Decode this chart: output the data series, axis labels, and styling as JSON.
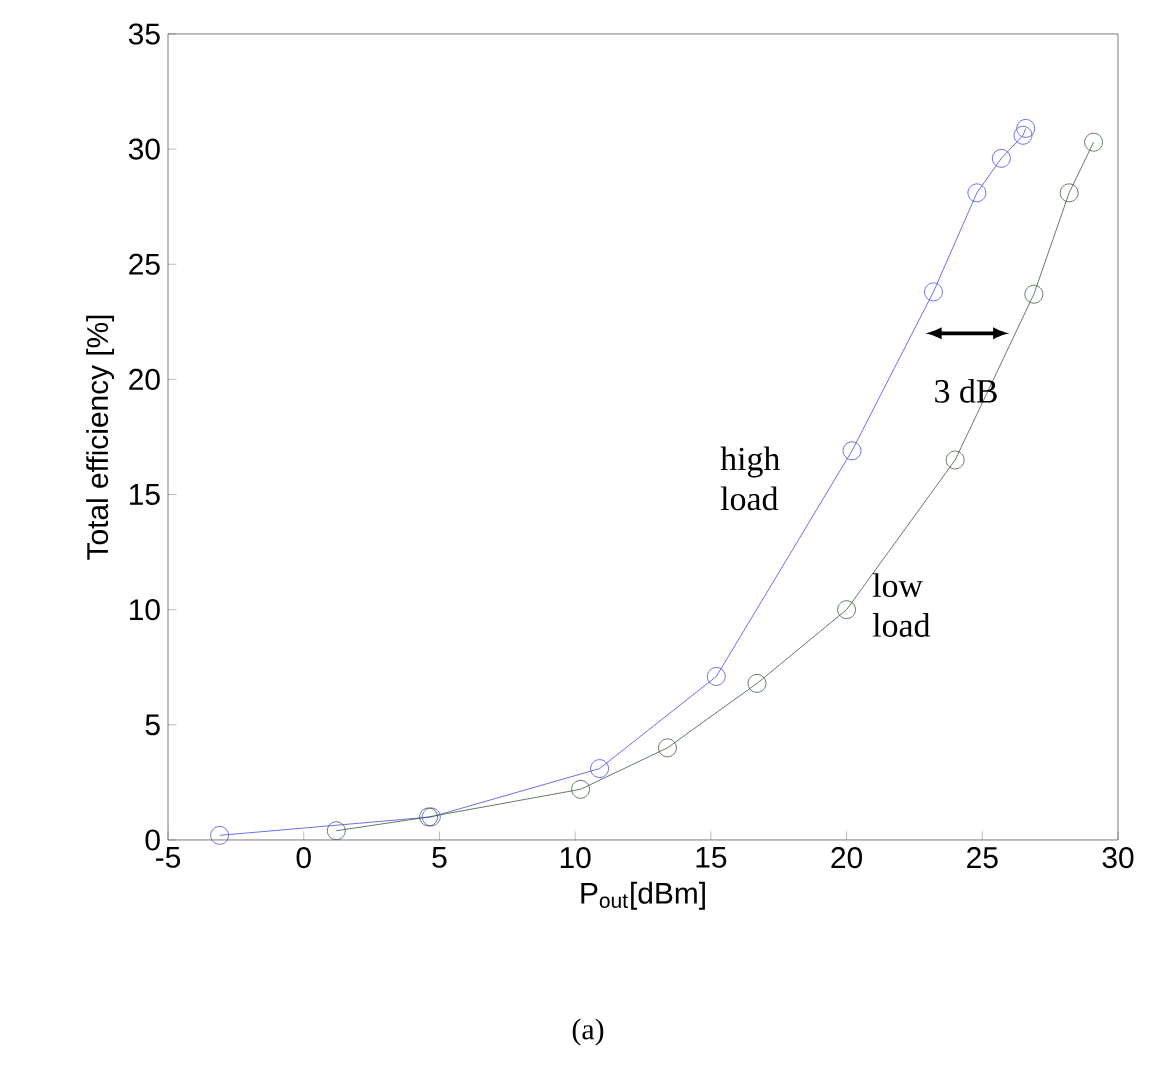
{
  "chart_data": {
    "type": "line",
    "xlabel": "P$_{out}$[dBm]",
    "ylabel": "Total efficiency [%]",
    "xlim": [
      -5,
      30
    ],
    "ylim": [
      0,
      35
    ],
    "xticks": [
      -5,
      0,
      5,
      10,
      15,
      20,
      25,
      30
    ],
    "yticks": [
      0,
      5,
      10,
      15,
      20,
      25,
      30,
      35
    ],
    "marker": "circle",
    "grid": false,
    "series": [
      {
        "name": "high load",
        "color": "#4a4ae6",
        "x": [
          -3.1,
          4.7,
          10.9,
          15.2,
          20.2,
          23.2,
          24.8,
          25.7,
          26.5,
          26.6
        ],
        "values": [
          0.2,
          1.0,
          3.1,
          7.1,
          16.9,
          23.8,
          28.1,
          29.6,
          30.6,
          30.9
        ]
      },
      {
        "name": "low load",
        "color": "#3c5a3c",
        "x": [
          1.2,
          4.6,
          10.2,
          13.4,
          16.7,
          20.0,
          24.0,
          26.9,
          28.2,
          29.1
        ],
        "values": [
          0.4,
          1.0,
          2.2,
          4.0,
          6.8,
          10.0,
          16.5,
          23.7,
          28.1,
          30.3
        ]
      }
    ],
    "annotations": [
      "3 dB",
      "(a)"
    ]
  }
}
